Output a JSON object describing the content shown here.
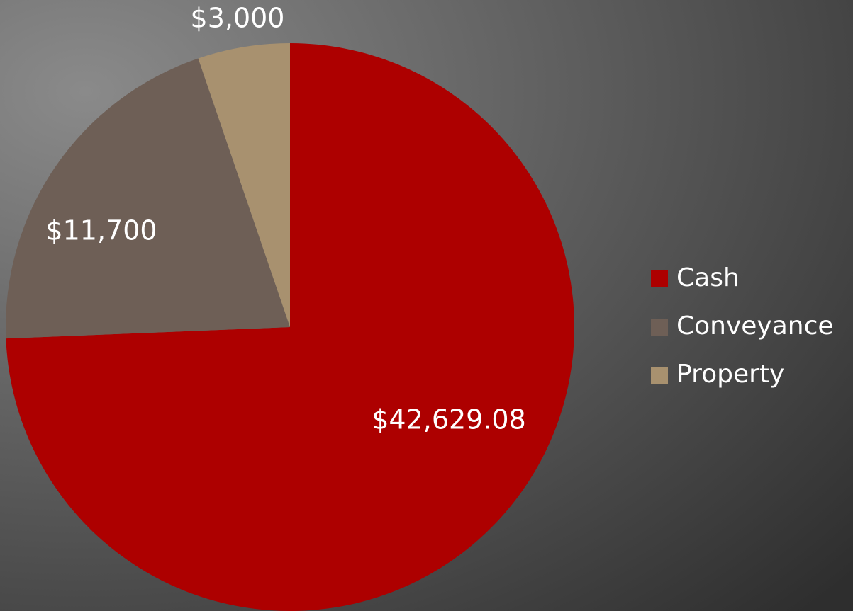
{
  "chart_data": {
    "type": "pie",
    "categories": [
      "Cash",
      "Conveyance",
      "Property"
    ],
    "values": [
      42629.08,
      11700,
      3000
    ],
    "value_labels": [
      "$42,629.08",
      "$11,700",
      "$3,000"
    ],
    "colors": [
      "#ad0000",
      "#6e5f56",
      "#a8916f"
    ],
    "legend": "right"
  }
}
